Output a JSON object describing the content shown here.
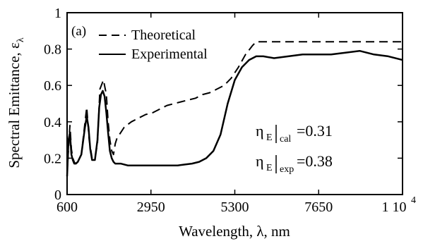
{
  "chart_data": {
    "type": "line",
    "panel_label": "(a)",
    "xlabel": "Wavelength, λ, nm",
    "ylabel_main": "Spectral Emittance, ε",
    "ylabel_sub": "λ",
    "xlim": [
      600,
      10000
    ],
    "ylim": [
      0,
      1
    ],
    "x_ticks": [
      {
        "value": 600,
        "label": "600"
      },
      {
        "value": 2950,
        "label": "2950"
      },
      {
        "value": 5300,
        "label": "5300"
      },
      {
        "value": 7650,
        "label": "7650"
      },
      {
        "value": 10000,
        "label": "1 10",
        "exp": "4"
      }
    ],
    "y_ticks": [
      {
        "value": 0,
        "label": "0"
      },
      {
        "value": 0.2,
        "label": "0.2"
      },
      {
        "value": 0.4,
        "label": "0.4"
      },
      {
        "value": 0.6,
        "label": "0.6"
      },
      {
        "value": 0.8,
        "label": "0.8"
      },
      {
        "value": 1,
        "label": "1"
      }
    ],
    "series": [
      {
        "name": "Theoretical",
        "style": "dashed",
        "x": [
          600,
          680,
          720,
          760,
          800,
          830,
          900,
          1000,
          1150,
          1220,
          1300,
          1380,
          1450,
          1520,
          1620,
          1700,
          1750,
          1800,
          1850,
          1900,
          1950,
          2000,
          2100,
          2200,
          2400,
          2600,
          2800,
          3000,
          3200,
          3400,
          3600,
          3800,
          4000,
          4200,
          4400,
          4600,
          4800,
          5000,
          5200,
          5400,
          5600,
          5800,
          5900,
          6000,
          6200,
          6600,
          7000,
          7500,
          8000,
          8500,
          9000,
          9500,
          10000
        ],
        "y": [
          0.12,
          0.38,
          0.25,
          0.2,
          0.18,
          0.17,
          0.18,
          0.22,
          0.48,
          0.3,
          0.2,
          0.2,
          0.28,
          0.58,
          0.63,
          0.55,
          0.4,
          0.3,
          0.24,
          0.22,
          0.28,
          0.31,
          0.34,
          0.37,
          0.4,
          0.42,
          0.44,
          0.45,
          0.47,
          0.49,
          0.5,
          0.51,
          0.52,
          0.53,
          0.55,
          0.56,
          0.58,
          0.6,
          0.64,
          0.7,
          0.77,
          0.82,
          0.84,
          0.84,
          0.84,
          0.84,
          0.84,
          0.84,
          0.84,
          0.84,
          0.84,
          0.84,
          0.84
        ]
      },
      {
        "name": "Experimental",
        "style": "solid",
        "x": [
          600,
          640,
          680,
          720,
          760,
          800,
          850,
          900,
          1000,
          1100,
          1150,
          1200,
          1250,
          1300,
          1380,
          1450,
          1500,
          1550,
          1600,
          1650,
          1700,
          1750,
          1800,
          1850,
          1900,
          1950,
          2000,
          2100,
          2300,
          2500,
          2700,
          2900,
          3100,
          3300,
          3500,
          3700,
          3900,
          4100,
          4300,
          4500,
          4700,
          4900,
          5100,
          5300,
          5500,
          5700,
          5900,
          6100,
          6400,
          6800,
          7200,
          7600,
          8000,
          8400,
          8800,
          9200,
          9600,
          10000
        ],
        "y": [
          0.1,
          0.3,
          0.34,
          0.22,
          0.19,
          0.17,
          0.17,
          0.18,
          0.22,
          0.37,
          0.43,
          0.37,
          0.25,
          0.19,
          0.19,
          0.3,
          0.48,
          0.55,
          0.57,
          0.54,
          0.45,
          0.34,
          0.24,
          0.2,
          0.18,
          0.17,
          0.17,
          0.17,
          0.16,
          0.16,
          0.16,
          0.16,
          0.16,
          0.16,
          0.16,
          0.16,
          0.165,
          0.17,
          0.18,
          0.2,
          0.24,
          0.33,
          0.5,
          0.63,
          0.7,
          0.74,
          0.76,
          0.76,
          0.75,
          0.76,
          0.77,
          0.77,
          0.77,
          0.78,
          0.79,
          0.77,
          0.76,
          0.74
        ]
      }
    ],
    "annotations": [
      {
        "main": "η",
        "sub": "E",
        "qualifier": "cal",
        "value": "=0.31"
      },
      {
        "main": "η",
        "sub": "E",
        "qualifier": "exp",
        "value": "=0.38"
      }
    ],
    "legend_position": "top-left",
    "grid": false,
    "colors": {
      "line": "#000000",
      "background": "#ffffff"
    }
  }
}
